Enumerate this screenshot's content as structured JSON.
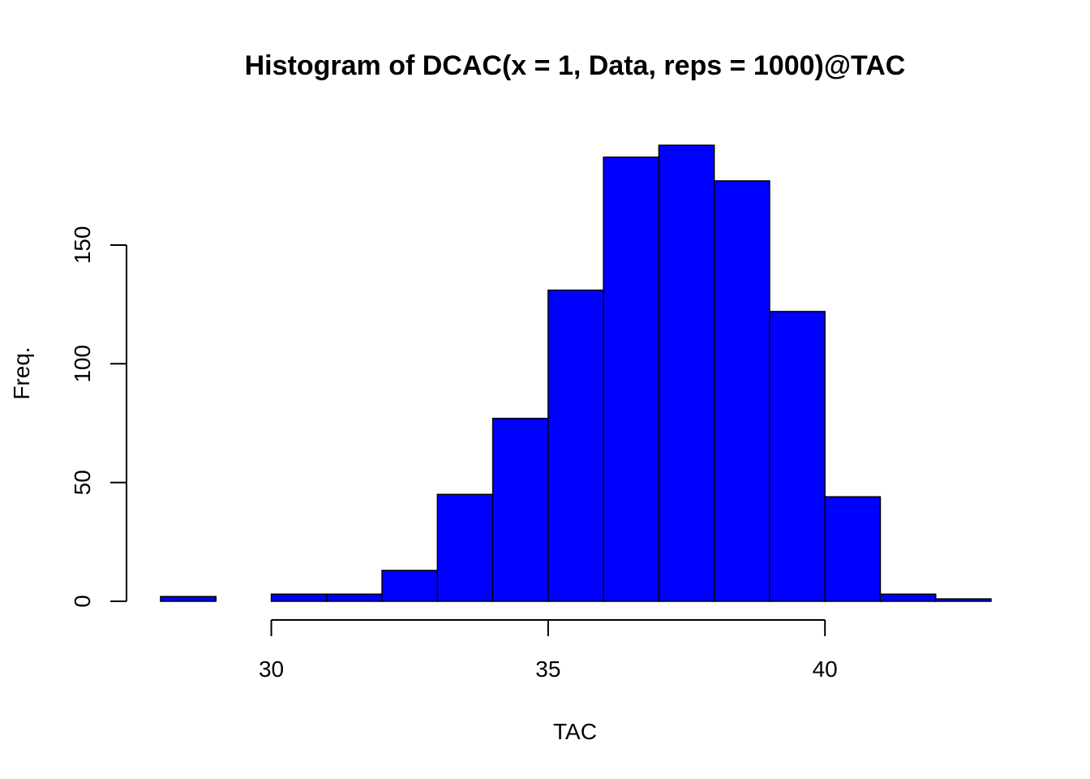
{
  "chart_data": {
    "type": "bar",
    "title": "Histogram of DCAC(x = 1, Data, reps = 1000)@TAC",
    "xlabel": "TAC",
    "ylabel": "Freq.",
    "bin_edges": [
      28,
      29,
      30,
      31,
      32,
      33,
      34,
      35,
      36,
      37,
      38,
      39,
      40,
      41,
      42,
      43
    ],
    "values": [
      2,
      0,
      3,
      3,
      13,
      45,
      77,
      131,
      187,
      192,
      177,
      122,
      44,
      3,
      1
    ],
    "x_ticks": [
      30,
      35,
      40
    ],
    "x_tick_labels": [
      "30",
      "35",
      "40"
    ],
    "y_ticks": [
      0,
      50,
      100,
      150
    ],
    "y_tick_labels": [
      "0",
      "50",
      "100",
      "150"
    ],
    "xlim": [
      28,
      43
    ],
    "ylim": [
      0,
      192
    ],
    "bar_color": "#0000ff",
    "bar_border_color": "#000000",
    "grid": false,
    "legend": false
  }
}
